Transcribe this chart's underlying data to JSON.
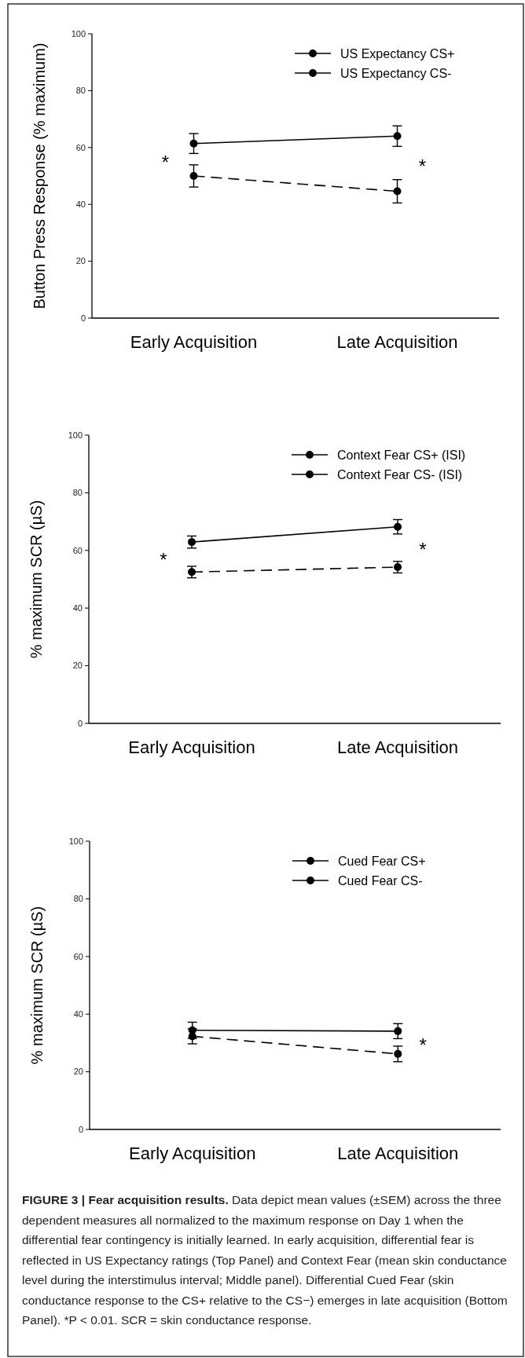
{
  "chart_data": [
    {
      "type": "line",
      "ylabel": "Button Press Response (% maximum)",
      "categories": [
        "Early Acquisition",
        "Late Acquisition"
      ],
      "ylim": [
        0,
        100
      ],
      "yticks": [
        0,
        20,
        40,
        60,
        80,
        100
      ],
      "legend": "top right",
      "marker": "circle",
      "grid": false,
      "series": [
        {
          "name": "US Expectancy CS+",
          "color": "#000000",
          "line_style": "solid",
          "values": [
            61.4,
            64.0
          ],
          "errors": [
            3.5,
            3.6
          ]
        },
        {
          "name": "US Expectancy CS-",
          "color": "#000000",
          "line_style": "dashed",
          "values": [
            50.0,
            44.6
          ],
          "errors": [
            3.9,
            4.1
          ]
        }
      ],
      "annotations": [
        "*",
        "*"
      ]
    },
    {
      "type": "line",
      "ylabel": "% maximum SCR (µS)",
      "categories": [
        "Early Acquisition",
        "Late Acquisition"
      ],
      "ylim": [
        0,
        100
      ],
      "yticks": [
        0,
        20,
        40,
        60,
        80,
        100
      ],
      "legend": "top right",
      "marker": "circle",
      "grid": false,
      "series": [
        {
          "name": "Context Fear CS+ (ISI)",
          "color": "#000000",
          "line_style": "solid",
          "values": [
            62.9,
            68.2
          ],
          "errors": [
            2.1,
            2.5
          ]
        },
        {
          "name": "Context Fear CS- (ISI)",
          "color": "#000000",
          "line_style": "dashed",
          "values": [
            52.5,
            54.2
          ],
          "errors": [
            2.0,
            2.0
          ]
        }
      ],
      "annotations": [
        "*",
        "*"
      ]
    },
    {
      "type": "line",
      "ylabel": "% maximum SCR (µS)",
      "categories": [
        "Early Acquisition",
        "Late Acquisition"
      ],
      "ylim": [
        0,
        100
      ],
      "yticks": [
        0,
        20,
        40,
        60,
        80,
        100
      ],
      "legend": "top right",
      "marker": "circle",
      "grid": false,
      "series": [
        {
          "name": "Cued Fear CS+",
          "color": "#000000",
          "line_style": "solid",
          "values": [
            34.4,
            34.1
          ],
          "errors": [
            2.8,
            2.6
          ]
        },
        {
          "name": "Cued Fear CS-",
          "color": "#000000",
          "line_style": "dashed",
          "values": [
            32.3,
            26.2
          ],
          "errors": [
            2.6,
            2.7
          ]
        }
      ],
      "annotations": [
        "*"
      ]
    },
    {
      "type": "other",
      "annotations": [
        "FIGURE 3 | Fear acquisition results.",
        "Data depict mean values (±SEM) across the three dependent measures all normalized to the maximum response on Day 1 when the differential fear contingency is initially learned. In early acquisition, differential fear is reflected in US Expectancy ratings (Top Panel) and Context Fear (mean skin conductance level during the interstimulus interval; Middle panel). Differential Cued Fear (skin conductance response to the CS+ relative to the CS−) emerges in late acquisition (Bottom Panel). *P < 0.01. SCR = skin conductance response."
      ]
    }
  ]
}
